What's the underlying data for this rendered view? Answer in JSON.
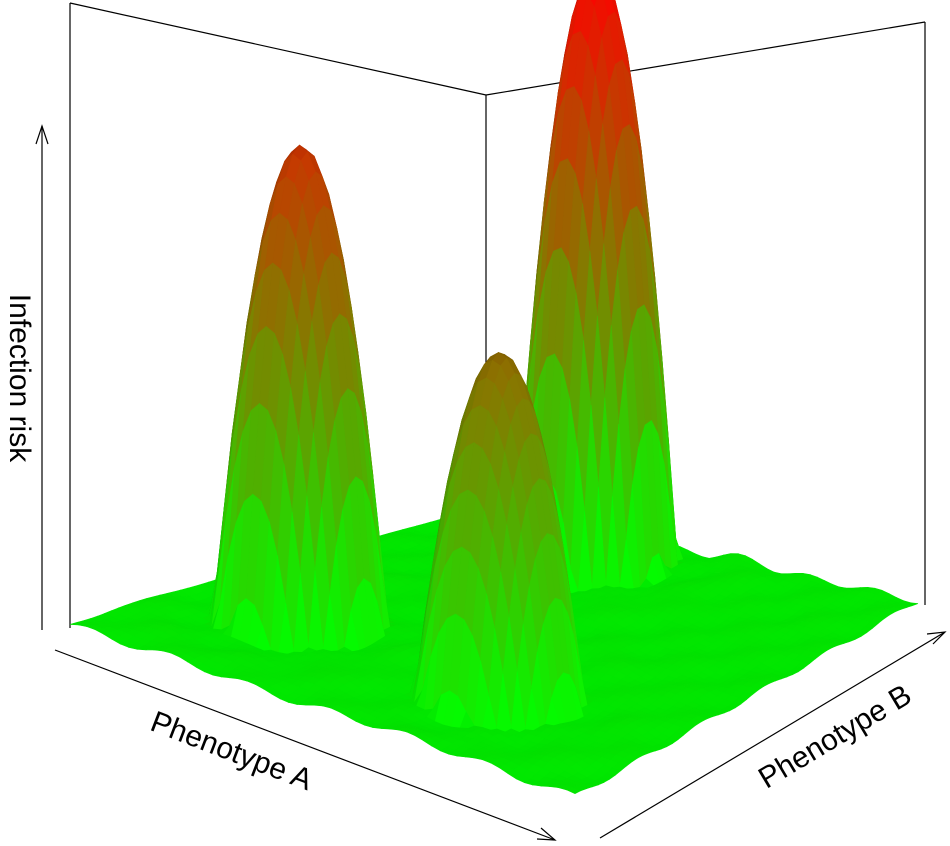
{
  "chart_data": {
    "type": "surface3d",
    "axes": {
      "x_label": "Phenotype A",
      "y_label": "Phenotype B",
      "z_label": "Infection risk"
    },
    "color_scale": {
      "low": "#00ff00",
      "high": "#ff0000"
    },
    "peaks": [
      {
        "x": 0.22,
        "y": 0.3,
        "height": 0.8
      },
      {
        "x": 0.67,
        "y": 0.25,
        "height": 0.58
      },
      {
        "x": 0.38,
        "y": 0.86,
        "height": 1.0
      }
    ],
    "grid": false
  }
}
